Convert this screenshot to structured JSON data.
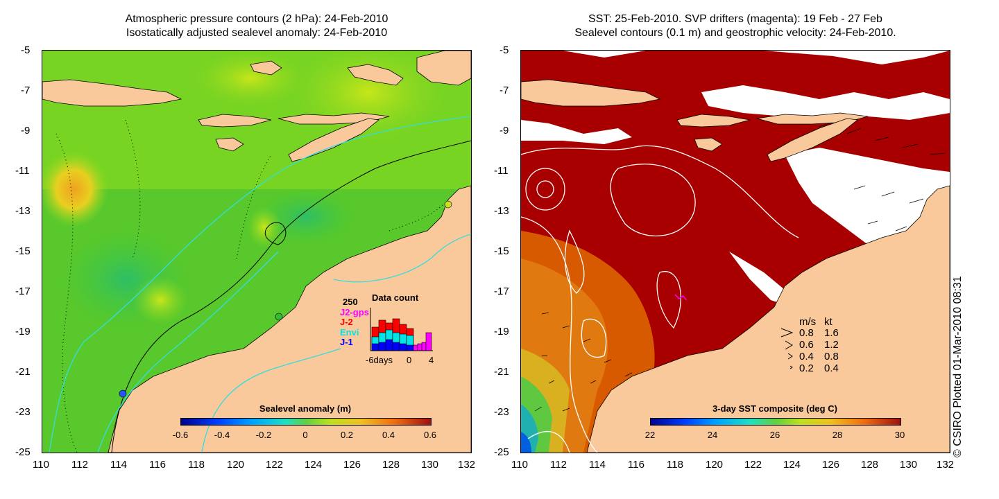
{
  "left_panel": {
    "title_line1": "Atmospheric pressure contours (2 hPa): 24-Feb-2010",
    "title_line2": "Isostatically adjusted sealevel anomaly: 24-Feb-2010",
    "colorbar": {
      "title": "Sealevel anomaly (m)",
      "labels": [
        "-0.6",
        "-0.4",
        "-0.2",
        "0",
        "0.2",
        "0.4",
        "0.6"
      ],
      "values": [
        -0.6,
        -0.4,
        -0.2,
        0,
        0.2,
        0.4,
        0.6
      ]
    },
    "data_count": {
      "title": "Data count",
      "ymax_label": "250",
      "legend": [
        {
          "label": "J2-gps",
          "color": "#ff00ff"
        },
        {
          "label": "J-2",
          "color": "#ff0000"
        },
        {
          "label": "Envi",
          "color": "#00e5e5"
        },
        {
          "label": "J-1",
          "color": "#0000ff"
        }
      ],
      "x_labels": [
        "-6days",
        "0",
        "4"
      ],
      "x_values": [
        -6,
        0,
        4
      ]
    }
  },
  "right_panel": {
    "title_line1": "SST: 25-Feb-2010. SVP drifters (magenta): 19 Feb - 27 Feb",
    "title_line2": "Sealevel contours (0.1 m) and geostrophic velocity: 24-Feb-2010.",
    "colorbar": {
      "title": "3-day SST composite (deg C)",
      "labels": [
        "22",
        "24",
        "26",
        "28",
        "30"
      ],
      "values": [
        22,
        24,
        26,
        28,
        30
      ]
    },
    "velocity_legend": {
      "header_ms": "m/s",
      "header_kt": "kt",
      "rows": [
        {
          "ms": "0.8",
          "kt": "1.6"
        },
        {
          "ms": "0.6",
          "kt": "1.2"
        },
        {
          "ms": "0.4",
          "kt": "0.8"
        },
        {
          "ms": "0.2",
          "kt": "0.4"
        }
      ]
    }
  },
  "axes": {
    "y_labels": [
      "-5",
      "-7",
      "-9",
      "-11",
      "-13",
      "-15",
      "-17",
      "-19",
      "-21",
      "-23",
      "-25"
    ],
    "x_labels": [
      "110",
      "112",
      "114",
      "116",
      "118",
      "120",
      "122",
      "124",
      "126",
      "128",
      "130",
      "132"
    ],
    "lat_range": [
      -25,
      -5
    ],
    "lon_range": [
      110,
      132
    ]
  },
  "credit": "© CSIRO Plotted 01-Mar-2010 08:31",
  "colors": {
    "land": "#f9c89b",
    "ocean_green": "#55cc22",
    "sst_dark_red": "#a80000",
    "contour_cyan": "#33dddd"
  }
}
